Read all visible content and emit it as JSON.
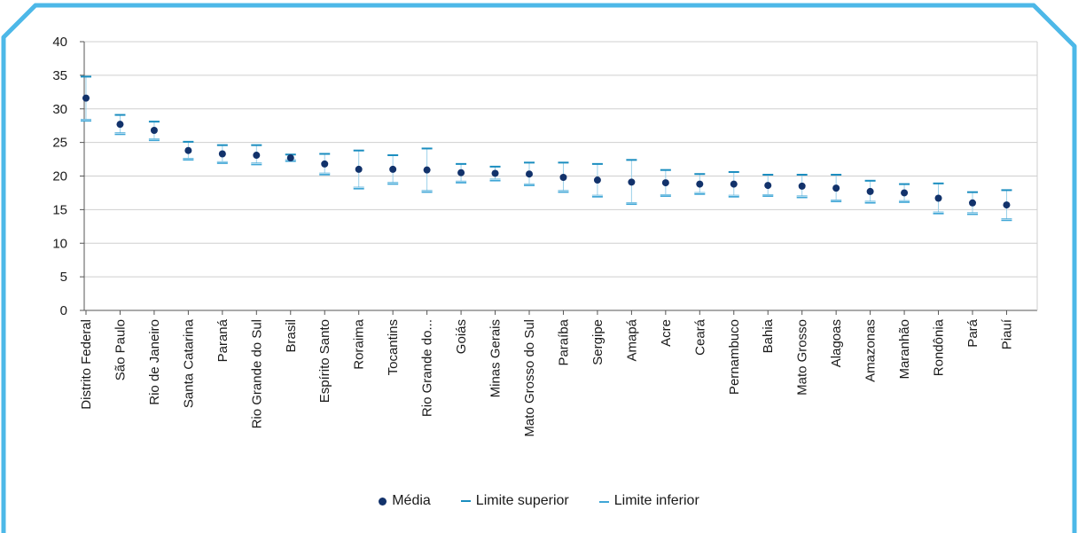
{
  "colors": {
    "frame": "#4db8e8",
    "mean": "#12326b",
    "upper": "#1a8dbf",
    "lower": "#3fa6d6",
    "whisker": "#9bd0ea",
    "grid": "#cfcfcf",
    "axis": "#555555"
  },
  "legend": {
    "mean": "Média",
    "upper": "Limite superior",
    "lower": "Limite inferior"
  },
  "chart_data": {
    "type": "scatter",
    "title": "",
    "xlabel": "",
    "ylabel": "",
    "ylim": [
      0,
      40
    ],
    "yticks": [
      0,
      5,
      10,
      15,
      20,
      25,
      30,
      35,
      40
    ],
    "grid": true,
    "legend_position": "bottom",
    "categories": [
      "Distrito Federal",
      "São Paulo",
      "Rio de Janeiro",
      "Santa Catarina",
      "Paraná",
      "Rio Grande do Sul",
      "Brasil",
      "Espírito Santo",
      "Roraima",
      "Tocantins",
      "Rio Grande do...",
      "Goiás",
      "Minas Gerais",
      "Mato Grosso do Sul",
      "Paraíba",
      "Sergipe",
      "Amapá",
      "Acre",
      "Ceará",
      "Pernambuco",
      "Bahia",
      "Mato Grosso",
      "Alagoas",
      "Amazonas",
      "Maranhão",
      "Rondônia",
      "Pará",
      "Piauí"
    ],
    "series": [
      {
        "name": "Média",
        "values": [
          31.6,
          27.7,
          26.8,
          23.8,
          23.3,
          23.1,
          22.7,
          21.8,
          21.0,
          21.0,
          20.9,
          20.5,
          20.4,
          20.3,
          19.8,
          19.4,
          19.1,
          19.0,
          18.8,
          18.8,
          18.6,
          18.5,
          18.2,
          17.7,
          17.5,
          16.7,
          16.0,
          15.7
        ]
      },
      {
        "name": "Limite superior",
        "values": [
          34.8,
          29.1,
          28.1,
          25.1,
          24.6,
          24.6,
          23.2,
          23.3,
          23.8,
          23.1,
          24.1,
          21.8,
          21.4,
          22.0,
          22.0,
          21.8,
          22.4,
          20.9,
          20.3,
          20.6,
          20.2,
          20.2,
          20.2,
          19.3,
          18.8,
          18.9,
          17.6,
          17.9
        ]
      },
      {
        "name": "Limite inferior",
        "values": [
          28.3,
          26.3,
          25.4,
          22.5,
          22.0,
          21.8,
          22.3,
          20.3,
          18.2,
          18.9,
          17.7,
          19.1,
          19.4,
          18.7,
          17.7,
          17.0,
          15.9,
          17.1,
          17.4,
          17.0,
          17.1,
          16.9,
          16.3,
          16.1,
          16.2,
          14.5,
          14.4,
          13.5
        ]
      }
    ]
  }
}
